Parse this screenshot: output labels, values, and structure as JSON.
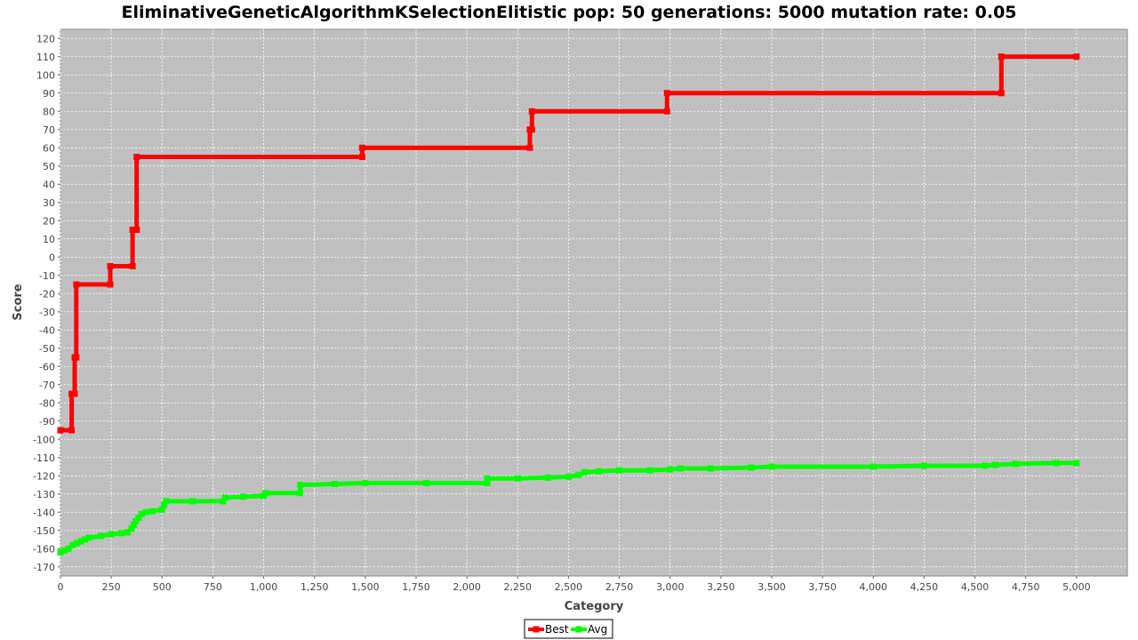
{
  "chart_data": {
    "type": "line",
    "title": "EliminativeGeneticAlgorithmKSelectionElitistic pop: 50 generations: 5000 mutation rate: 0.05",
    "xlabel": "Category",
    "ylabel": "Score",
    "xlim": [
      0,
      5250
    ],
    "ylim": [
      -175,
      125
    ],
    "xticks": [
      0,
      250,
      500,
      750,
      1000,
      1250,
      1500,
      1750,
      2000,
      2250,
      2500,
      2750,
      3000,
      3250,
      3500,
      3750,
      4000,
      4250,
      4500,
      4750,
      5000
    ],
    "xtick_labels": [
      "0",
      "250",
      "500",
      "750",
      "1,000",
      "1,250",
      "1,500",
      "1,750",
      "2,000",
      "2,250",
      "2,500",
      "2,750",
      "3,000",
      "3,250",
      "3,500",
      "3,750",
      "4,000",
      "4,250",
      "4,500",
      "4,750",
      "5,000"
    ],
    "yticks": [
      120,
      110,
      100,
      90,
      80,
      70,
      60,
      50,
      40,
      30,
      20,
      10,
      0,
      -10,
      -20,
      -30,
      -40,
      -50,
      -60,
      -70,
      -80,
      -90,
      -100,
      -110,
      -120,
      -130,
      -140,
      -150,
      -160,
      -170
    ],
    "grid": true,
    "plot_background": "#c0c0c0",
    "legend": "bottom-center",
    "series": [
      {
        "name": "Best",
        "color": "#ff0000",
        "points": [
          [
            0,
            -95
          ],
          [
            55,
            -95
          ],
          [
            55,
            -75
          ],
          [
            70,
            -75
          ],
          [
            70,
            -55
          ],
          [
            78,
            -55
          ],
          [
            78,
            -15
          ],
          [
            245,
            -15
          ],
          [
            245,
            -5
          ],
          [
            355,
            -5
          ],
          [
            355,
            15
          ],
          [
            375,
            15
          ],
          [
            375,
            55
          ],
          [
            1485,
            55
          ],
          [
            1485,
            60
          ],
          [
            2310,
            60
          ],
          [
            2310,
            70
          ],
          [
            2320,
            70
          ],
          [
            2320,
            80
          ],
          [
            2985,
            80
          ],
          [
            2985,
            90
          ],
          [
            4630,
            90
          ],
          [
            4630,
            110
          ],
          [
            5000,
            110
          ]
        ]
      },
      {
        "name": "Avg",
        "color": "#00ff00",
        "points": [
          [
            0,
            -162
          ],
          [
            20,
            -161
          ],
          [
            40,
            -160
          ],
          [
            60,
            -158
          ],
          [
            80,
            -157
          ],
          [
            100,
            -156
          ],
          [
            120,
            -155
          ],
          [
            140,
            -154
          ],
          [
            200,
            -153
          ],
          [
            250,
            -152
          ],
          [
            300,
            -151.5
          ],
          [
            330,
            -151
          ],
          [
            350,
            -149
          ],
          [
            360,
            -147
          ],
          [
            370,
            -145
          ],
          [
            385,
            -143
          ],
          [
            400,
            -141
          ],
          [
            420,
            -140
          ],
          [
            450,
            -139.5
          ],
          [
            500,
            -138.5
          ],
          [
            510,
            -136
          ],
          [
            520,
            -134
          ],
          [
            650,
            -134
          ],
          [
            800,
            -134
          ],
          [
            810,
            -132
          ],
          [
            900,
            -131.5
          ],
          [
            1000,
            -131
          ],
          [
            1010,
            -129.5
          ],
          [
            1180,
            -129.5
          ],
          [
            1180,
            -125
          ],
          [
            1350,
            -124.5
          ],
          [
            1500,
            -124
          ],
          [
            1800,
            -124
          ],
          [
            2100,
            -124
          ],
          [
            2100,
            -121.5
          ],
          [
            2250,
            -121.5
          ],
          [
            2400,
            -121
          ],
          [
            2500,
            -120.5
          ],
          [
            2550,
            -119.5
          ],
          [
            2580,
            -118
          ],
          [
            2650,
            -117.5
          ],
          [
            2750,
            -117
          ],
          [
            2900,
            -117
          ],
          [
            3000,
            -116.5
          ],
          [
            3050,
            -116
          ],
          [
            3200,
            -116
          ],
          [
            3400,
            -115.5
          ],
          [
            3500,
            -115
          ],
          [
            4000,
            -115
          ],
          [
            4250,
            -114.5
          ],
          [
            4550,
            -114.5
          ],
          [
            4600,
            -114
          ],
          [
            4700,
            -113.5
          ],
          [
            4900,
            -113
          ],
          [
            5000,
            -113
          ]
        ]
      }
    ]
  }
}
